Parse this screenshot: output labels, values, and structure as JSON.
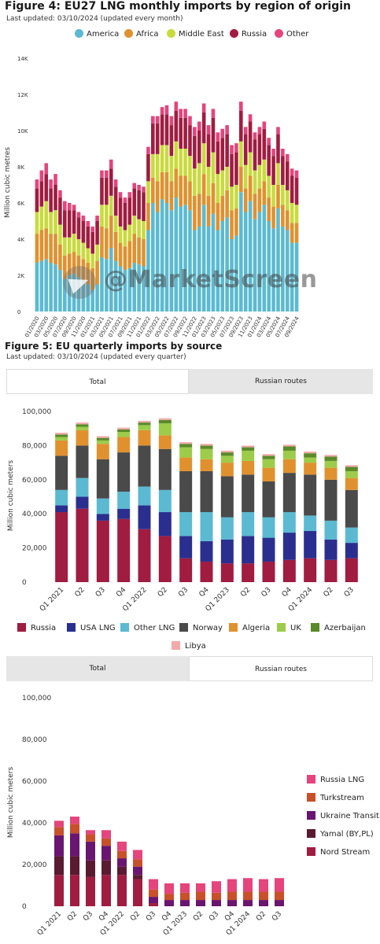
{
  "chart_data": [
    {
      "type": "bar",
      "stacked": true,
      "title": "Figure 4: EU27 LNG monthly imports by region of origin",
      "subtitle": "Last updated: 03/10/2024 (updated every month)",
      "ylabel": "Million cubic metres",
      "ylim": [
        0,
        14000
      ],
      "yticks": [
        "0",
        "2K",
        "4K",
        "6K",
        "8K",
        "10K",
        "12K",
        "14K"
      ],
      "grid": false,
      "legend_position": "top",
      "x_tick_labels": [
        "01/2020",
        "03/2020",
        "05/2020",
        "07/2020",
        "09/2020",
        "11/2020",
        "01/2021",
        "03/2021",
        "05/2021",
        "07/2021",
        "09/2021",
        "11/2021",
        "01/2022",
        "03/2022",
        "05/2022",
        "07/2022",
        "09/2022",
        "11/2022",
        "01/2023",
        "03/2023",
        "05/2023",
        "07/2023",
        "09/2023",
        "11/2023",
        "01/2024",
        "03/2024",
        "05/2024",
        "07/2024",
        "09/2024"
      ],
      "x": [
        "01/2020",
        "02/2020",
        "03/2020",
        "04/2020",
        "05/2020",
        "06/2020",
        "07/2020",
        "08/2020",
        "09/2020",
        "10/2020",
        "11/2020",
        "12/2020",
        "01/2021",
        "02/2021",
        "03/2021",
        "04/2021",
        "05/2021",
        "06/2021",
        "07/2021",
        "08/2021",
        "09/2021",
        "10/2021",
        "11/2021",
        "12/2021",
        "01/2022",
        "02/2022",
        "03/2022",
        "04/2022",
        "05/2022",
        "06/2022",
        "07/2022",
        "08/2022",
        "09/2022",
        "10/2022",
        "11/2022",
        "12/2022",
        "01/2023",
        "02/2023",
        "03/2023",
        "04/2023",
        "05/2023",
        "06/2023",
        "07/2023",
        "08/2023",
        "09/2023",
        "10/2023",
        "11/2023",
        "12/2023",
        "01/2024",
        "02/2024",
        "03/2024",
        "04/2024",
        "05/2024",
        "06/2024",
        "07/2024",
        "08/2024",
        "09/2024"
      ],
      "series": [
        {
          "name": "America",
          "color": "#5bbad1",
          "values": [
            2700,
            2800,
            2900,
            2700,
            2600,
            2300,
            1800,
            2000,
            2100,
            1900,
            1700,
            1500,
            1200,
            1500,
            3000,
            2900,
            3500,
            2800,
            2500,
            2300,
            2400,
            2700,
            2600,
            2500,
            4500,
            6000,
            5500,
            6200,
            6000,
            5600,
            6300,
            5800,
            5900,
            5600,
            4500,
            4700,
            5900,
            4700,
            5400,
            4500,
            5000,
            5200,
            4000,
            4200,
            6600,
            5500,
            6100,
            5100,
            5500,
            5900,
            5000,
            4600,
            5700,
            4700,
            4500,
            3800,
            3800
          ]
        },
        {
          "name": "Africa",
          "color": "#e0912e",
          "values": [
            1600,
            1700,
            1700,
            1600,
            1700,
            1400,
            1300,
            1200,
            1200,
            1200,
            1200,
            1200,
            1200,
            1300,
            1700,
            1700,
            1800,
            1600,
            1300,
            1300,
            1500,
            1600,
            1500,
            1500,
            1500,
            1400,
            1700,
            1500,
            1700,
            1600,
            1600,
            1700,
            1600,
            1600,
            1900,
            1800,
            1700,
            1700,
            1700,
            1500,
            1400,
            1500,
            1600,
            1500,
            1400,
            1300,
            1400,
            1400,
            1300,
            1300,
            1300,
            1200,
            1300,
            1200,
            1100,
            1100,
            1100
          ]
        },
        {
          "name": "Middle East",
          "color": "#c9da3c",
          "values": [
            1200,
            1300,
            1500,
            1200,
            1300,
            1100,
            1000,
            900,
            1000,
            900,
            900,
            800,
            800,
            900,
            1200,
            1300,
            1100,
            900,
            900,
            900,
            900,
            1000,
            1000,
            1000,
            1200,
            1300,
            1500,
            1500,
            1500,
            1400,
            1500,
            1500,
            1500,
            1400,
            1500,
            1700,
            1700,
            1600,
            1700,
            1600,
            1400,
            1300,
            1300,
            1300,
            1400,
            1300,
            1300,
            1300,
            1300,
            1200,
            1200,
            1200,
            1200,
            1100,
            1100,
            1100,
            1000
          ]
        },
        {
          "name": "Russia",
          "color": "#a01c40",
          "values": [
            1300,
            1400,
            1500,
            1300,
            1400,
            1500,
            1500,
            1500,
            1300,
            1200,
            1200,
            1200,
            1200,
            1300,
            1500,
            1500,
            1500,
            1600,
            1600,
            1500,
            1500,
            1500,
            1600,
            1600,
            1500,
            1700,
            1700,
            1700,
            1700,
            1700,
            1700,
            1700,
            1700,
            1700,
            1800,
            1800,
            1700,
            1800,
            1900,
            1800,
            1800,
            1800,
            1800,
            1800,
            1700,
            1700,
            1700,
            1700,
            1700,
            1700,
            1700,
            1600,
            1600,
            1600,
            1600,
            1500,
            1500
          ]
        },
        {
          "name": "Other",
          "color": "#e5447c",
          "values": [
            500,
            600,
            600,
            500,
            600,
            400,
            500,
            400,
            300,
            300,
            300,
            300,
            300,
            300,
            400,
            400,
            500,
            400,
            300,
            300,
            300,
            300,
            300,
            300,
            400,
            400,
            400,
            400,
            500,
            500,
            500,
            500,
            500,
            500,
            500,
            500,
            500,
            500,
            500,
            500,
            500,
            500,
            500,
            500,
            500,
            400,
            400,
            400,
            400,
            400,
            400,
            400,
            400,
            400,
            400,
            400,
            400
          ]
        }
      ]
    },
    {
      "type": "bar",
      "stacked": true,
      "title": "Figure 5: EU quarterly imports by source",
      "subtitle": "Last updated: 03/10/2024 (updated every quarter)",
      "ylabel": "Million cubic meters",
      "ylim": [
        0,
        100000
      ],
      "yticks": [
        "0",
        "20,000",
        "40,000",
        "60,000",
        "80,000",
        "100,000"
      ],
      "grid": false,
      "legend_position": "bottom",
      "categories": [
        "Q1 2021",
        "Q2",
        "Q3",
        "Q4",
        "Q1 2022",
        "Q2",
        "Q3",
        "Q4",
        "Q1 2023",
        "Q2",
        "Q3",
        "Q4",
        "Q1 2024",
        "Q2",
        "Q3"
      ],
      "series": [
        {
          "name": "Russia",
          "color": "#a01c40",
          "values": [
            41000,
            43000,
            36000,
            37000,
            31000,
            27000,
            14000,
            12000,
            11000,
            11000,
            12000,
            13000,
            14000,
            13000,
            14000
          ]
        },
        {
          "name": "USA LNG",
          "color": "#2a2f8f",
          "values": [
            4000,
            7000,
            4000,
            6000,
            14000,
            14000,
            13000,
            12000,
            14000,
            16000,
            14000,
            16000,
            16000,
            12000,
            9000
          ]
        },
        {
          "name": "Other LNG",
          "color": "#5bbad1",
          "values": [
            9000,
            11000,
            9000,
            10000,
            11000,
            13000,
            14000,
            17000,
            13000,
            14000,
            12000,
            12000,
            9000,
            11000,
            9000
          ]
        },
        {
          "name": "Norway",
          "color": "#4a4a4a",
          "values": [
            20000,
            19000,
            23000,
            23000,
            24000,
            24000,
            24000,
            24000,
            24000,
            22000,
            21000,
            23000,
            24000,
            24000,
            22000
          ]
        },
        {
          "name": "Algeria",
          "color": "#e0912e",
          "values": [
            9000,
            9000,
            9000,
            9000,
            9000,
            8000,
            8000,
            7000,
            8000,
            8000,
            8000,
            8000,
            7000,
            7000,
            7000
          ]
        },
        {
          "name": "UK",
          "color": "#9ccc4a",
          "values": [
            2000,
            2000,
            2000,
            3000,
            3000,
            7000,
            6000,
            6000,
            4000,
            6000,
            5000,
            5000,
            3000,
            4000,
            4000
          ]
        },
        {
          "name": "Azerbaijan",
          "color": "#5a8a2a",
          "values": [
            1500,
            1500,
            1500,
            1500,
            1500,
            2000,
            2000,
            2000,
            2000,
            2000,
            2000,
            2500,
            2500,
            2500,
            2500
          ]
        },
        {
          "name": "Libya",
          "color": "#f3aaaa",
          "values": [
            1000,
            1000,
            1000,
            1000,
            1000,
            1000,
            1000,
            1000,
            1000,
            1000,
            1000,
            1000,
            1000,
            1000,
            1000
          ]
        }
      ]
    },
    {
      "type": "bar",
      "stacked": true,
      "ylabel": "Million cubic meters",
      "ylim": [
        0,
        100000
      ],
      "yticks": [
        "0",
        "20,000",
        "40,000",
        "60,000",
        "80,000",
        "100,000"
      ],
      "grid": false,
      "legend_position": "right",
      "categories": [
        "Q1 2021",
        "Q2",
        "Q3",
        "Q4",
        "Q1 2022",
        "Q2",
        "Q3",
        "Q4",
        "Q1 2023",
        "Q2",
        "Q3",
        "Q4",
        "Q1 2024",
        "Q2",
        "Q3"
      ],
      "series": [
        {
          "name": "Nord Stream",
          "color": "#a01c40",
          "values": [
            15000,
            15000,
            14000,
            15000,
            15000,
            13000,
            1500,
            0,
            0,
            0,
            0,
            0,
            0,
            0,
            0
          ]
        },
        {
          "name": "Yamal (BY,PL)",
          "color": "#5a1a32",
          "values": [
            9000,
            9000,
            8000,
            7000,
            4000,
            2000,
            0,
            0,
            0,
            0,
            0,
            0,
            0,
            0,
            0
          ]
        },
        {
          "name": "Ukraine Transit",
          "color": "#6a1570",
          "values": [
            10000,
            11000,
            9000,
            7000,
            4000,
            4000,
            3000,
            3000,
            3000,
            3000,
            3000,
            3000,
            3000,
            3000,
            3000
          ]
        },
        {
          "name": "Turkstream",
          "color": "#c8502a",
          "values": [
            4000,
            4500,
            3500,
            3500,
            3500,
            3500,
            3500,
            3000,
            3500,
            4000,
            3500,
            4000,
            4000,
            4000,
            4000
          ]
        },
        {
          "name": "Russia LNG",
          "color": "#e5447c",
          "values": [
            3000,
            3500,
            2000,
            4000,
            4500,
            4500,
            5000,
            5000,
            4500,
            4000,
            5500,
            6000,
            6500,
            6000,
            6500
          ]
        }
      ]
    }
  ],
  "fig5_tabs": {
    "tab1": "Total",
    "tab2": "Russian routes"
  },
  "fig6_tabs": {
    "tab1": "Total",
    "tab2": "Russian routes"
  },
  "watermark": "@MarketScreen"
}
